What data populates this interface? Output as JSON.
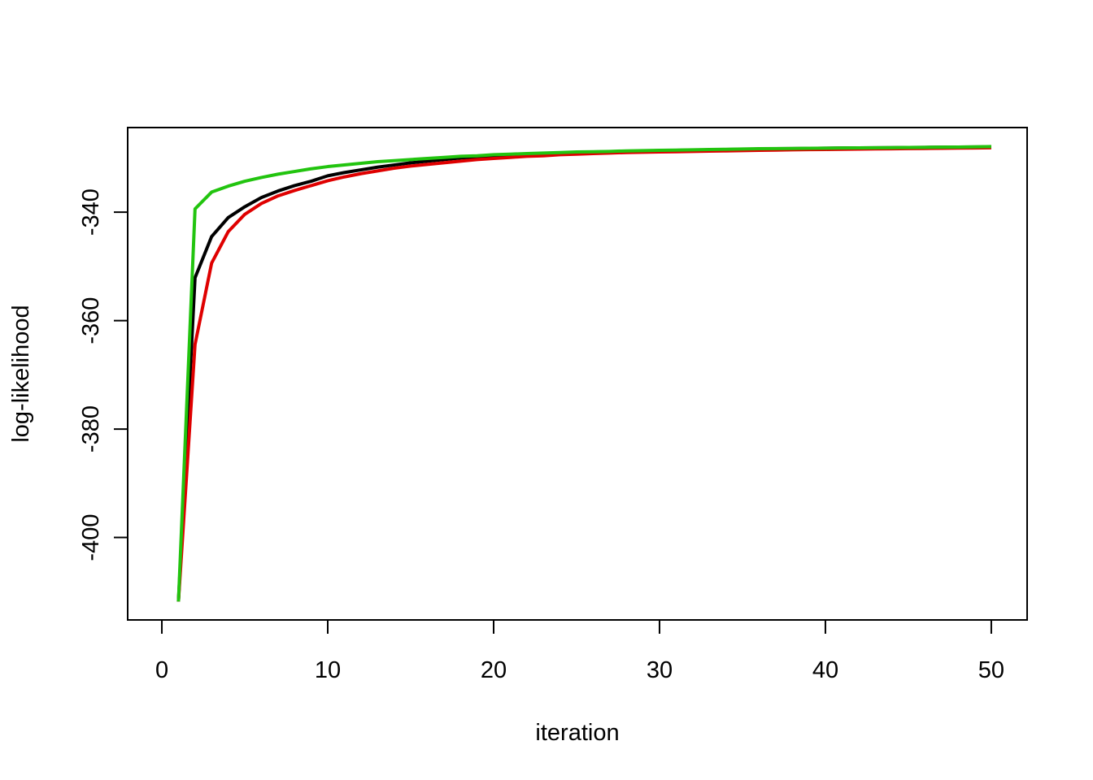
{
  "chart_data": {
    "type": "line",
    "x_label": "iteration",
    "y_label": "log-likelihood",
    "x": [
      1,
      2,
      3,
      4,
      5,
      6,
      7,
      8,
      9,
      10,
      11,
      12,
      13,
      14,
      15,
      16,
      17,
      18,
      19,
      20,
      21,
      22,
      23,
      24,
      25,
      26,
      27,
      28,
      29,
      30,
      31,
      32,
      33,
      34,
      35,
      36,
      37,
      38,
      39,
      40,
      41,
      42,
      43,
      44,
      45,
      46,
      47,
      48,
      49,
      50
    ],
    "series": [
      {
        "color": "#000000",
        "values": [
          -411.8,
          -352.1,
          -344.5,
          -341.0,
          -339.0,
          -337.3,
          -336.1,
          -335.1,
          -334.3,
          -333.3,
          -332.7,
          -332.2,
          -331.7,
          -331.3,
          -330.9,
          -330.6,
          -330.3,
          -330.0,
          -329.8,
          -329.6,
          -329.4,
          -329.3,
          -329.2,
          -329.1,
          -329.0,
          -328.9,
          -328.85,
          -328.8,
          -328.7,
          -328.65,
          -328.6,
          -328.55,
          -328.5,
          -328.45,
          -328.4,
          -328.35,
          -328.3,
          -328.27,
          -328.24,
          -328.2,
          -328.17,
          -328.15,
          -328.12,
          -328.1,
          -328.07,
          -328.05,
          -328.02,
          -328.0,
          -327.97,
          -327.95
        ]
      },
      {
        "color": "#df0000",
        "values": [
          -411.8,
          -364.4,
          -349.4,
          -343.6,
          -340.4,
          -338.4,
          -337.0,
          -336.0,
          -335.1,
          -334.2,
          -333.5,
          -332.9,
          -332.4,
          -331.9,
          -331.5,
          -331.2,
          -330.9,
          -330.6,
          -330.3,
          -330.1,
          -329.9,
          -329.7,
          -329.6,
          -329.4,
          -329.3,
          -329.2,
          -329.1,
          -329.0,
          -328.95,
          -328.9,
          -328.85,
          -328.8,
          -328.75,
          -328.7,
          -328.65,
          -328.6,
          -328.55,
          -328.5,
          -328.47,
          -328.44,
          -328.4,
          -328.37,
          -328.34,
          -328.31,
          -328.28,
          -328.25,
          -328.22,
          -328.19,
          -328.16,
          -328.13
        ]
      },
      {
        "color": "#22c40f",
        "values": [
          -411.8,
          -339.4,
          -336.3,
          -335.2,
          -334.3,
          -333.6,
          -333.0,
          -332.5,
          -332.0,
          -331.6,
          -331.3,
          -331.0,
          -330.7,
          -330.5,
          -330.3,
          -330.1,
          -329.9,
          -329.7,
          -329.6,
          -329.4,
          -329.3,
          -329.2,
          -329.1,
          -329.0,
          -328.9,
          -328.85,
          -328.8,
          -328.7,
          -328.65,
          -328.6,
          -328.55,
          -328.5,
          -328.45,
          -328.4,
          -328.35,
          -328.3,
          -328.28,
          -328.25,
          -328.22,
          -328.2,
          -328.17,
          -328.15,
          -328.12,
          -328.1,
          -328.07,
          -328.05,
          -328.02,
          -328.0,
          -327.95,
          -327.9
        ]
      }
    ],
    "xlim": [
      -2.06,
      52.16
    ],
    "ylim": [
      -415.2,
      -324.4
    ],
    "xticks": [
      0,
      10,
      20,
      30,
      40,
      50
    ],
    "yticks": [
      -400,
      -380,
      -360,
      -340
    ]
  }
}
